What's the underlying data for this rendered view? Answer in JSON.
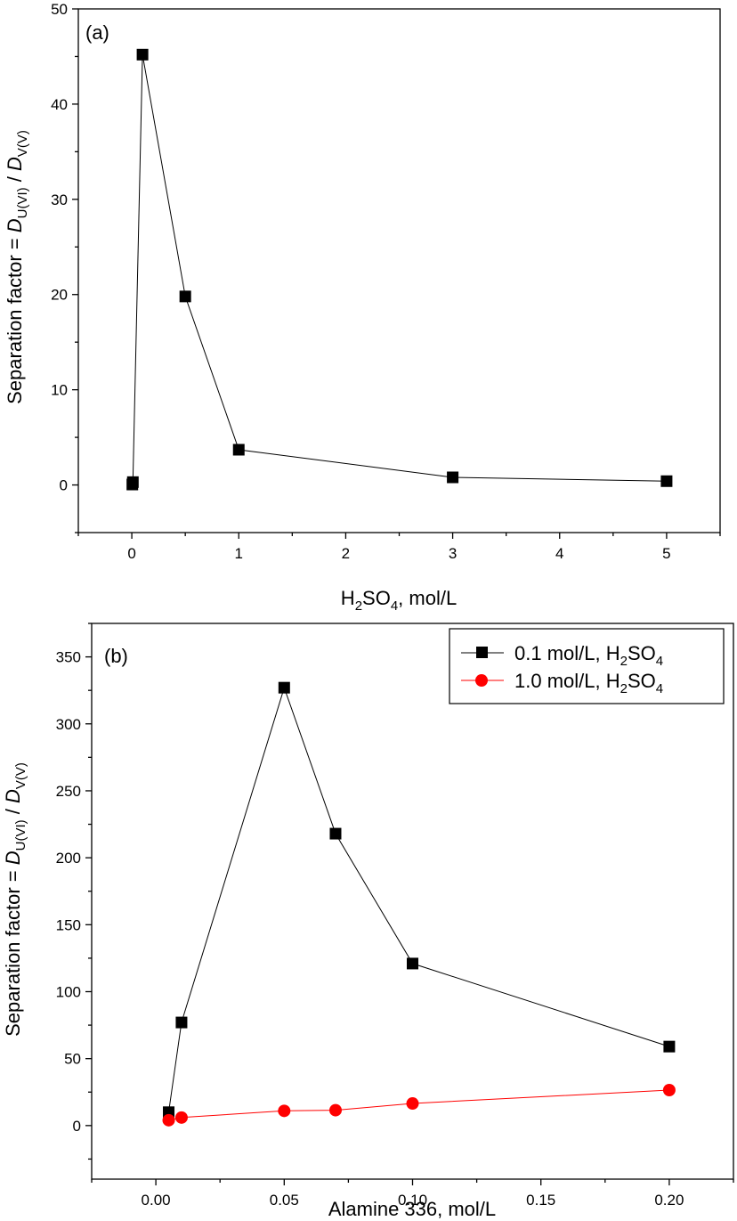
{
  "chart_data": [
    {
      "type": "line",
      "panel_label": "(a)",
      "xlabel": {
        "pre": "H",
        "sub1": "2",
        "mid": "SO",
        "sub2": "4",
        "post": ", mol/L"
      },
      "ylabel": {
        "pre": "Separation factor = ",
        "d1": "D",
        "sub1": "U(VI)",
        "sep": " / ",
        "d2": "D",
        "sub2": "V(V)"
      },
      "xlim": [
        -0.5,
        5.5
      ],
      "ylim": [
        -5,
        50
      ],
      "xticks": [
        0,
        1,
        2,
        3,
        4,
        5
      ],
      "xtick_labels": [
        "0",
        "1",
        "2",
        "3",
        "4",
        "5"
      ],
      "yticks": [
        0,
        10,
        20,
        30,
        40,
        50
      ],
      "ytick_labels": [
        "0",
        "10",
        "20",
        "30",
        "40",
        "50"
      ],
      "grid": false,
      "series": [
        {
          "marker": "square",
          "color": "#000000",
          "x": [
            0.005,
            0.01,
            0.1,
            0.5,
            1.0,
            3.0,
            5.0
          ],
          "y": [
            0.05,
            0.3,
            45.2,
            19.8,
            3.7,
            0.8,
            0.4
          ]
        }
      ]
    },
    {
      "type": "line",
      "panel_label": "(b)",
      "xlabel": {
        "text": "Alamine 336, mol/L"
      },
      "ylabel": {
        "pre": "Separation factor = ",
        "d1": "D",
        "sub1": "U(VI)",
        "sep": " / ",
        "d2": "D",
        "sub2": "V(V)"
      },
      "xlim": [
        -0.025,
        0.225
      ],
      "ylim": [
        -40,
        375
      ],
      "xticks": [
        0.0,
        0.05,
        0.1,
        0.15,
        0.2
      ],
      "xtick_labels": [
        "0.00",
        "0.05",
        "0.10",
        "0.15",
        "0.20"
      ],
      "yticks": [
        0,
        50,
        100,
        150,
        200,
        250,
        300,
        350
      ],
      "ytick_labels": [
        "0",
        "50",
        "100",
        "150",
        "200",
        "250",
        "300",
        "350"
      ],
      "grid": false,
      "legend_position": "top-right",
      "series": [
        {
          "name": {
            "pre": "0.1 mol/L, H",
            "sub1": "2",
            "mid": "SO",
            "sub2": "4"
          },
          "marker": "square",
          "color": "#000000",
          "x": [
            0.005,
            0.01,
            0.05,
            0.07,
            0.1,
            0.2
          ],
          "y": [
            10,
            77,
            327,
            218,
            121,
            59
          ]
        },
        {
          "name": {
            "pre": "1.0 mol/L, H",
            "sub1": "2",
            "mid": "SO",
            "sub2": "4"
          },
          "marker": "circle",
          "color": "#ff0000",
          "x": [
            0.005,
            0.01,
            0.05,
            0.07,
            0.1,
            0.2
          ],
          "y": [
            4,
            6,
            11,
            11.5,
            16.5,
            26.5
          ]
        }
      ]
    }
  ]
}
